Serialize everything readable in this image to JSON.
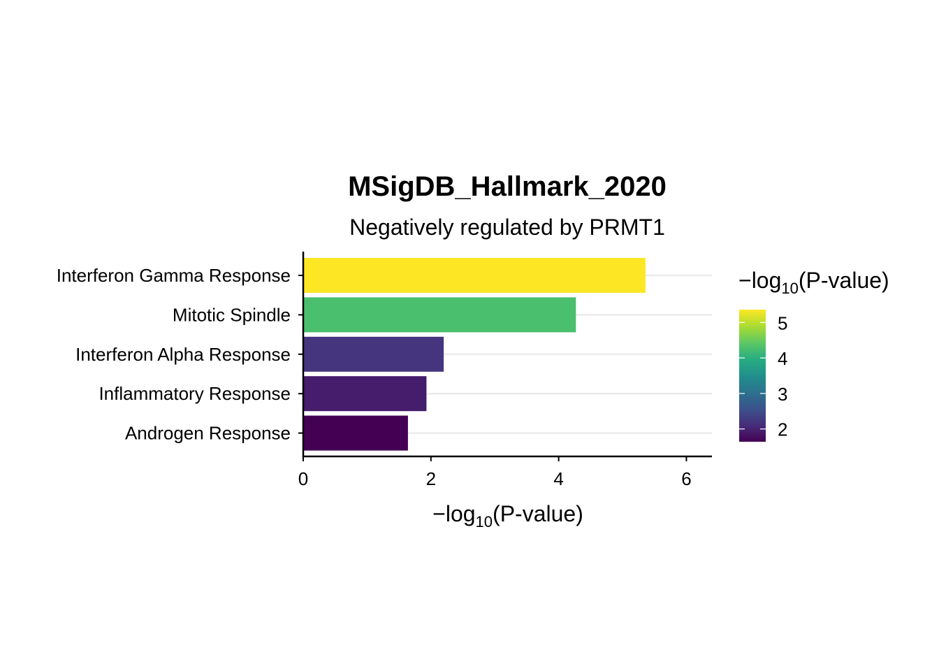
{
  "chart_data": {
    "type": "bar",
    "orientation": "horizontal",
    "title": "MSigDB_Hallmark_2020",
    "subtitle": "Negatively regulated by PRMT1",
    "xlabel": {
      "prefix": "−log",
      "subscript": "10",
      "suffix": "(P-value)"
    },
    "ylabel": "",
    "xlim": [
      0,
      6.4
    ],
    "xticks": [
      0,
      2,
      4,
      6
    ],
    "categories": [
      "Interferon Gamma Response",
      "Mitotic Spindle",
      "Interferon Alpha Response",
      "Inflammatory Response",
      "Androgen Response"
    ],
    "values": [
      5.36,
      4.27,
      2.2,
      1.93,
      1.64
    ],
    "grid": "horizontal major lines",
    "legend": {
      "title": {
        "prefix": "−log",
        "subscript": "10",
        "suffix": "(P-value)"
      },
      "placement": "right",
      "type": "colorbar",
      "range": [
        1.64,
        5.36
      ],
      "ticks": [
        2,
        3,
        4,
        5
      ],
      "palette": "viridis"
    },
    "colors": [
      "#440154",
      "#472D7B",
      "#3B528B",
      "#2C728E",
      "#21908C",
      "#27AD81",
      "#5DC863",
      "#AADC32",
      "#FDE725"
    ]
  }
}
